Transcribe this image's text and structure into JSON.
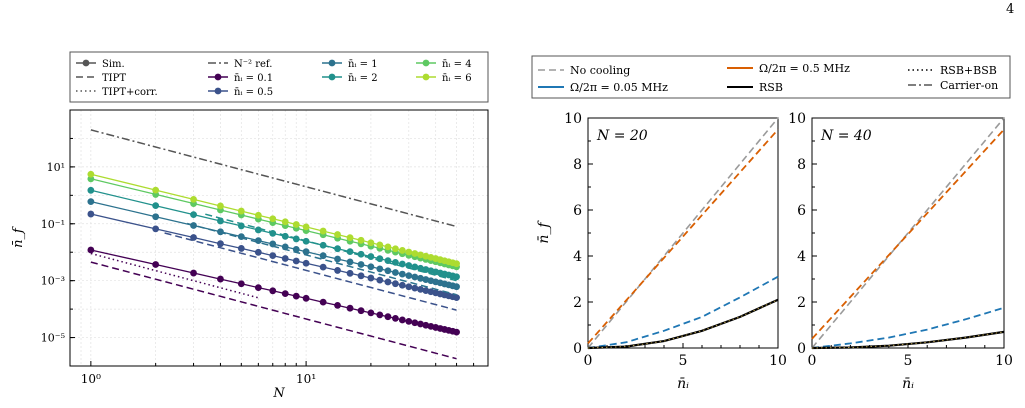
{
  "page_number": "4",
  "chart_data": [
    {
      "type": "line",
      "xscale": "log",
      "yscale": "log",
      "xlabel": "N",
      "ylabel": "n̄_f",
      "xlim": [
        0.8,
        70
      ],
      "ylim": [
        1e-06,
        1000
      ],
      "xticks": [
        1,
        10
      ],
      "xtick_labels": [
        "10⁰",
        "10¹"
      ],
      "yticks": [
        1e-05,
        0.001,
        0.1,
        10
      ],
      "ytick_labels": [
        "10⁻⁵",
        "10⁻³",
        "10⁻¹",
        "10¹"
      ],
      "grid": true,
      "legend_placement": "top",
      "legend": [
        {
          "label": "Sim.",
          "style": "marker-line",
          "color": "#555555"
        },
        {
          "label": "TIPT",
          "style": "dashed",
          "color": "#555555"
        },
        {
          "label": "TIPT+corr.",
          "style": "dotted",
          "color": "#555555"
        },
        {
          "label": "N⁻² ref.",
          "style": "dashdot",
          "color": "#555555"
        },
        {
          "label": "n̄ᵢ = 0.1",
          "style": "marker-line",
          "color": "#440154"
        },
        {
          "label": "n̄ᵢ = 0.5",
          "style": "marker-line",
          "color": "#3b528b"
        },
        {
          "label": "n̄ᵢ = 1",
          "style": "marker-line",
          "color": "#2c728e"
        },
        {
          "label": "n̄ᵢ = 2",
          "style": "marker-line",
          "color": "#21918c"
        },
        {
          "label": "n̄ᵢ = 4",
          "style": "marker-line",
          "color": "#5ec962"
        },
        {
          "label": "n̄ᵢ = 6",
          "style": "marker-line",
          "color": "#addc30"
        }
      ],
      "x": [
        1,
        2,
        3,
        4,
        5,
        6,
        7,
        8,
        9,
        10,
        12,
        14,
        16,
        18,
        20,
        22,
        24,
        26,
        28,
        30,
        32,
        34,
        36,
        38,
        40,
        42,
        44,
        46,
        48,
        50
      ],
      "series": [
        {
          "name": "n̄ᵢ = 0.1",
          "color": "#440154",
          "sim_y_at_1": 0.012,
          "tipt_y_at_1": 0.0045,
          "corr_y_at_1": 0.009
        },
        {
          "name": "n̄ᵢ = 0.5",
          "color": "#3b528b",
          "sim_y_at_1": 0.22,
          "tipt_y_at_1": 0.23,
          "corr_y_at_1": 0.23
        },
        {
          "name": "n̄ᵢ = 1",
          "color": "#2c728e",
          "sim_y_at_1": 0.6,
          "tipt_y_at_1": 0.8,
          "corr_y_at_1": 0.8
        },
        {
          "name": "n̄ᵢ = 2",
          "color": "#21918c",
          "sim_y_at_1": 1.5,
          "tipt_y_at_1": 2.5,
          "corr_y_at_1": 2.5
        },
        {
          "name": "n̄ᵢ = 4",
          "color": "#5ec962",
          "sim_y_at_1": 3.8,
          "tipt_y_at_1": 0,
          "corr_y_at_1": 0
        },
        {
          "name": "n̄ᵢ = 6",
          "color": "#addc30",
          "sim_y_at_1": 5.5,
          "tipt_y_at_1": 0,
          "corr_y_at_1": 0
        }
      ],
      "reference": {
        "name": "N⁻² ref.",
        "color": "#555555",
        "y_at_1": 200
      }
    },
    {
      "type": "line",
      "title": "N = 20",
      "xlabel": "n̄ᵢ",
      "ylabel": "n̄_f",
      "xlim": [
        0,
        10
      ],
      "ylim": [
        0,
        10
      ],
      "xticks": [
        0,
        5,
        10
      ],
      "yticks": [
        0,
        2,
        4,
        6,
        8,
        10
      ],
      "grid": false,
      "legend_placement": "top",
      "legend": [
        {
          "label": "No cooling",
          "style": "dashed",
          "color": "#9a9a9a"
        },
        {
          "label": "Ω/2π = 0.05 MHz",
          "style": "solid",
          "color": "#1f77b4"
        },
        {
          "label": "Ω/2π = 0.5 MHz",
          "style": "solid",
          "color": "#d95f02"
        },
        {
          "label": "RSB",
          "style": "solid",
          "color": "#000000"
        },
        {
          "label": "RSB+BSB",
          "style": "dotted",
          "color": "#000000"
        },
        {
          "label": "Carrier-on",
          "style": "dashdot",
          "color": "#555555"
        }
      ],
      "series": [
        {
          "name": "No cooling",
          "x": [
            0,
            10
          ],
          "y": [
            0,
            10
          ]
        },
        {
          "name": "Ω/2π = 0.5 MHz",
          "x": [
            0,
            10
          ],
          "y": [
            0.2,
            9.5
          ]
        },
        {
          "name": "Ω/2π = 0.05 MHz",
          "x": [
            0,
            2,
            4,
            6,
            8,
            10
          ],
          "y": [
            0,
            0.25,
            0.75,
            1.35,
            2.2,
            3.1
          ]
        },
        {
          "name": "RSB",
          "x": [
            0,
            2,
            4,
            6,
            8,
            10
          ],
          "y": [
            0,
            0.06,
            0.3,
            0.75,
            1.35,
            2.1
          ]
        }
      ]
    },
    {
      "type": "line",
      "title": "N = 40",
      "xlabel": "n̄ᵢ",
      "ylabel": "",
      "xlim": [
        0,
        10
      ],
      "ylim": [
        0,
        10
      ],
      "xticks": [
        0,
        5,
        10
      ],
      "yticks": [
        0,
        2,
        4,
        6,
        8,
        10
      ],
      "grid": false,
      "series": [
        {
          "name": "No cooling",
          "x": [
            0,
            10
          ],
          "y": [
            0,
            10
          ]
        },
        {
          "name": "Ω/2π = 0.5 MHz",
          "x": [
            0,
            10
          ],
          "y": [
            0.4,
            9.5
          ]
        },
        {
          "name": "Ω/2π = 0.05 MHz",
          "x": [
            0,
            2,
            4,
            6,
            8,
            10
          ],
          "y": [
            0,
            0.2,
            0.45,
            0.8,
            1.25,
            1.75
          ]
        },
        {
          "name": "RSB",
          "x": [
            0,
            2,
            4,
            6,
            8,
            10
          ],
          "y": [
            0,
            0.02,
            0.1,
            0.25,
            0.45,
            0.7
          ]
        }
      ]
    }
  ]
}
